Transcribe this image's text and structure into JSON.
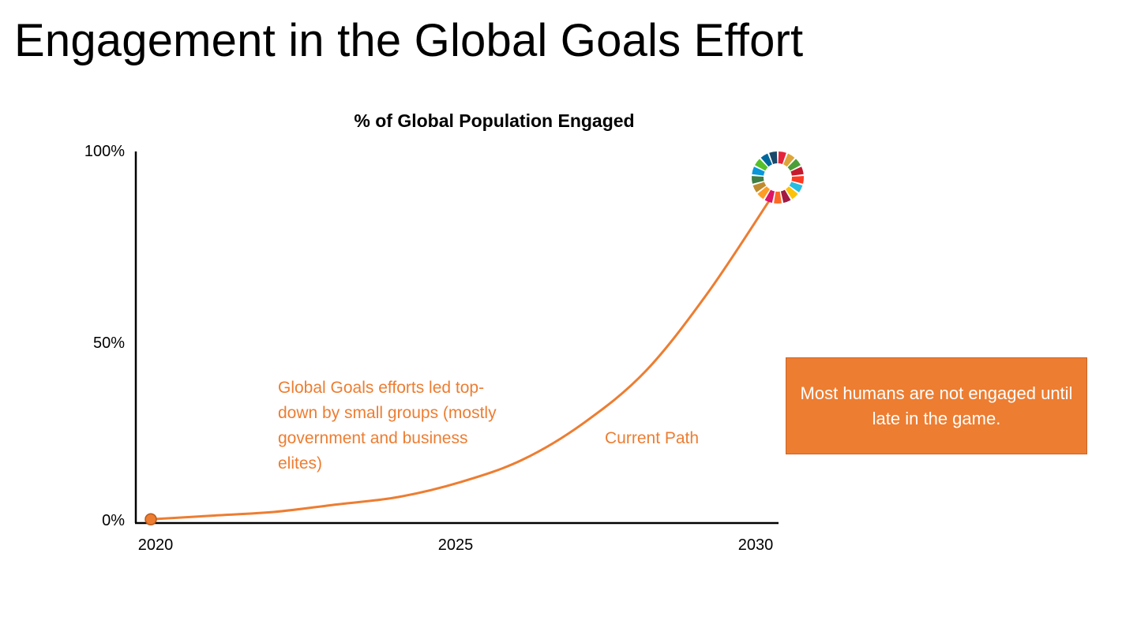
{
  "slide": {
    "title": "Engagement in the Global Goals Effort"
  },
  "chart_data": {
    "type": "line",
    "title": "% of Global Population Engaged",
    "xlabel": "",
    "ylabel": "",
    "x_ticks": [
      "2020",
      "2025",
      "2030"
    ],
    "y_ticks": [
      "0%",
      "50%",
      "100%"
    ],
    "xlim": [
      2020,
      2030
    ],
    "ylim": [
      0,
      100
    ],
    "grid": false,
    "series": [
      {
        "name": "Current Path",
        "color": "#ED7D31",
        "x": [
          2020,
          2021,
          2022,
          2023,
          2024,
          2025,
          2026,
          2027,
          2028,
          2029,
          2030
        ],
        "y": [
          1,
          2,
          3,
          5,
          7,
          11,
          17,
          27,
          41,
          62,
          87
        ]
      }
    ],
    "start_marker": {
      "x": 2020,
      "y": 1,
      "color": "#ED7D31"
    },
    "end_marker": {
      "x": 2030,
      "y": 93,
      "icon": "sdg-color-wheel-icon"
    },
    "annotations": [
      {
        "id": "efforts",
        "text": "Global Goals efforts led top-down by small groups (mostly government and business elites)"
      },
      {
        "id": "path",
        "text": "Current Path"
      }
    ]
  },
  "callout": {
    "text": "Most humans are not engaged until late in the game.",
    "color": "#ED7D31"
  },
  "sdg_wheel_colors": [
    "#E5243B",
    "#DDA63A",
    "#4C9F38",
    "#C5192D",
    "#FF3A21",
    "#26BDE2",
    "#FCC30B",
    "#A21942",
    "#FD6925",
    "#DD1367",
    "#FD9D24",
    "#BF8B2E",
    "#3F7E44",
    "#0A97D9",
    "#56C02B",
    "#00689D",
    "#19486A"
  ]
}
